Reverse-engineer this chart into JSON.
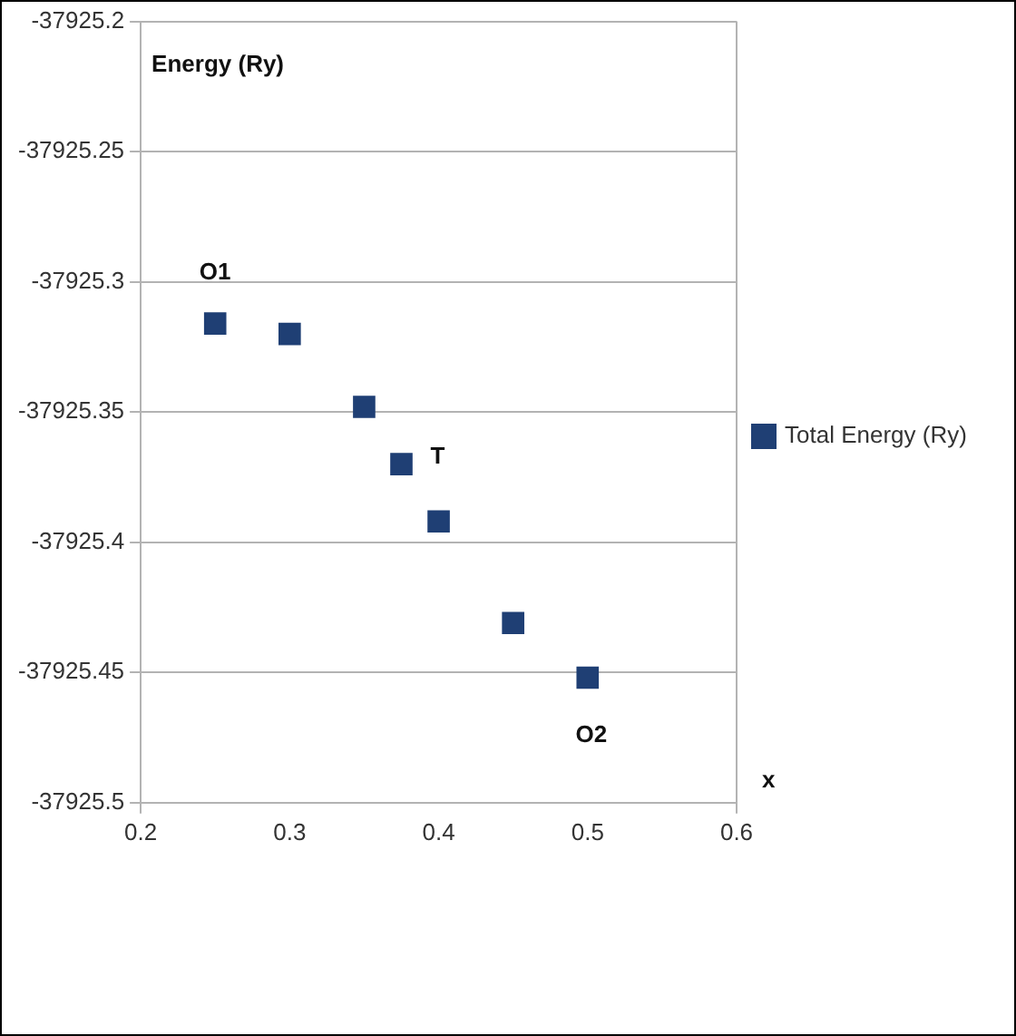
{
  "chart_data": {
    "type": "scatter",
    "ylabel": "Energy (Ry)",
    "xlabel": "x",
    "x": [
      0.25,
      0.3,
      0.35,
      0.375,
      0.4,
      0.45,
      0.5
    ],
    "series": [
      {
        "name": "Total Energy (Ry)",
        "color": "#1f3f74",
        "values": [
          -37925.316,
          -37925.32,
          -37925.348,
          -37925.37,
          -37925.392,
          -37925.431,
          -37925.452
        ]
      }
    ],
    "xlim": [
      0.2,
      0.6
    ],
    "xticks": [
      0.2,
      0.3,
      0.4,
      0.5,
      0.6
    ],
    "ylim": [
      -37925.5,
      -37925.2
    ],
    "yticks": [
      -37925.5,
      -37925.45,
      -37925.4,
      -37925.35,
      -37925.3,
      -37925.25,
      -37925.2
    ],
    "grid": "y",
    "legend": "right",
    "marker": "square",
    "annotations": [
      {
        "text": "O1",
        "x": 0.25,
        "y": -37925.316
      },
      {
        "text": "T",
        "x": 0.375,
        "y": -37925.37
      },
      {
        "text": "O2",
        "x": 0.5,
        "y": -37925.452
      }
    ]
  }
}
